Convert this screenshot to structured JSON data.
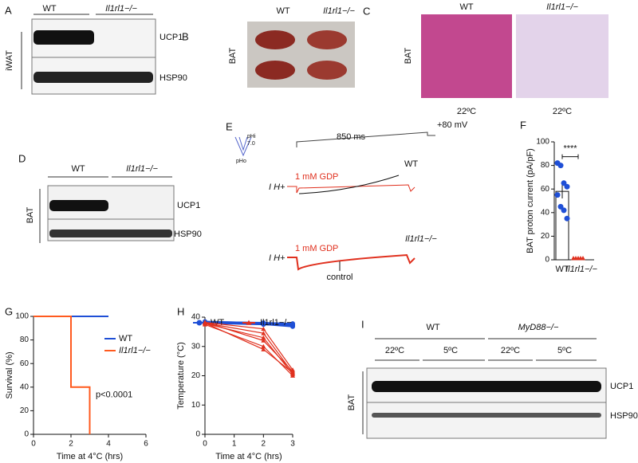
{
  "panels": {
    "A": {
      "letter": "A",
      "groups": [
        "WT",
        "Il1rl1−/−"
      ],
      "bands": [
        "UCP1",
        "HSP90"
      ],
      "tissue": "iWAT"
    },
    "B": {
      "letter": "B",
      "groups": [
        "WT",
        "Il1rl1−/−"
      ],
      "tissue": "BAT"
    },
    "C": {
      "letter": "C",
      "groups": [
        "WT",
        "Il1rl1−/−"
      ],
      "tissue": "BAT",
      "temps": [
        "22ºC",
        "22ºC"
      ]
    },
    "D": {
      "letter": "D",
      "groups": [
        "WT",
        "Il1rl1−/−"
      ],
      "bands": [
        "UCP1",
        "HSP90"
      ],
      "tissue": "BAT"
    },
    "E": {
      "letter": "E",
      "ph_in": "pHi",
      "ph_value": "7.0",
      "ph_out": "pHo",
      "duration": "850 ms",
      "voltage": "+80 mV",
      "current": "I H+",
      "gdp": "1 mM GDP",
      "wt": "WT",
      "ko": "Il1rl1−/−",
      "control": "control"
    },
    "F": {
      "letter": "F"
    },
    "G": {
      "letter": "G"
    },
    "H": {
      "letter": "H"
    },
    "I": {
      "letter": "I",
      "groups": [
        "WT",
        "MyD88−/−"
      ],
      "temps": [
        "22ºC",
        "5ºC",
        "22ºC",
        "5ºC"
      ],
      "bands": [
        "UCP1",
        "HSP90"
      ],
      "tissue": "BAT"
    }
  },
  "chart_data": [
    {
      "type": "bar",
      "ylabel": "BAT proton current (pA/pF)",
      "categories": [
        "WT",
        "Il1rl1−/−"
      ],
      "values": [
        58,
        0
      ],
      "errors": [
        6,
        0
      ],
      "points": [
        [
          82,
          80,
          65,
          62,
          55,
          45,
          42,
          35
        ],
        [
          0,
          0,
          0,
          0,
          0
        ]
      ],
      "colors": [
        "#1f4fd6",
        "#e0301e"
      ],
      "annotation": "****",
      "ylim": [
        0,
        100
      ],
      "yticks": [
        0,
        20,
        40,
        60,
        80,
        100
      ]
    },
    {
      "type": "step",
      "xlabel": "Time at 4°C (hrs)",
      "ylabel": "Survival (%)",
      "annotation": "p<0.0001",
      "legend": "upper right",
      "series": [
        {
          "name": "WT",
          "color": "#1f4fd6",
          "x": [
            0,
            4
          ],
          "values": [
            100,
            100
          ]
        },
        {
          "name": "Il1rl1−/−",
          "color": "#ff5a1f",
          "x": [
            0,
            2,
            2,
            3,
            3
          ],
          "values": [
            100,
            100,
            40,
            40,
            0
          ]
        }
      ],
      "xlim": [
        0,
        6
      ],
      "xticks": [
        0,
        2,
        4,
        6
      ],
      "ylim": [
        0,
        100
      ],
      "yticks": [
        0,
        20,
        40,
        60,
        80,
        100
      ]
    },
    {
      "type": "line",
      "xlabel": "Time at 4°C (hrs)",
      "ylabel": "Temperature (°C)",
      "legend": "top",
      "x": [
        0,
        2,
        3
      ],
      "series": [
        {
          "name": "WT",
          "color": "#1f4fd6",
          "values": [
            [
              38.5,
              38,
              37.5
            ],
            [
              38.3,
              37.8,
              37
            ],
            [
              38.2,
              37.6,
              36.8
            ],
            [
              38,
              37.5,
              37.2
            ],
            [
              38.4,
              38.1,
              37.8
            ]
          ]
        },
        {
          "name": "Il1rl1−/−",
          "color": "#e0301e",
          "values": [
            [
              38.2,
              36,
              22
            ],
            [
              38,
              34.5,
              21
            ],
            [
              37.8,
              33,
              20.5
            ],
            [
              38.3,
              32,
              21.5
            ],
            [
              37.5,
              30,
              20
            ],
            [
              38,
              29,
              21
            ]
          ]
        }
      ],
      "xlim": [
        0,
        3
      ],
      "xticks": [
        0,
        1,
        2,
        3
      ],
      "ylim": [
        0,
        40
      ],
      "yticks": [
        0,
        10,
        20,
        30,
        40
      ]
    }
  ]
}
